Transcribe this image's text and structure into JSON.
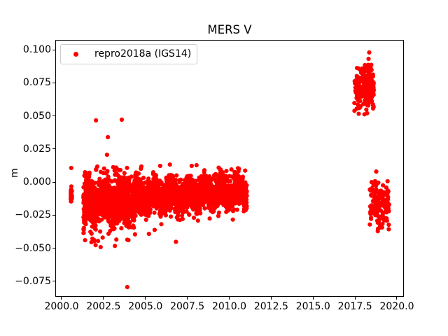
{
  "title": "MERS V",
  "chart_data": {
    "type": "scatter",
    "title": "MERS V",
    "xlabel": "",
    "ylabel": "m",
    "grid": false,
    "xlim": [
      1999.666,
      2020.376
    ],
    "ylim": [
      -0.08623,
      0.10689
    ],
    "xticks": {
      "values": [
        2000.0,
        2002.5,
        2005.0,
        2007.5,
        2010.0,
        2012.5,
        2015.0,
        2017.5,
        2020.0
      ],
      "labels": [
        "2000.0",
        "2002.5",
        "2005.0",
        "2007.5",
        "2010.0",
        "2012.5",
        "2015.0",
        "2017.5",
        "2020.0"
      ]
    },
    "yticks": {
      "values": [
        0.1,
        0.075,
        0.05,
        0.025,
        0.0,
        -0.025,
        -0.05,
        -0.075
      ],
      "labels": [
        "0.100",
        "0.075",
        "0.050",
        "0.025",
        "0.000",
        "−0.025",
        "−0.050",
        "−0.075"
      ]
    },
    "legend": {
      "position": "upper left",
      "entries": [
        {
          "label": "repro2018a (IGS14)",
          "color": "#ff0000",
          "marker": "point"
        }
      ]
    },
    "marker": {
      "shape": "circle",
      "color": "#ff0000",
      "radius_px": 3.1
    },
    "seed": 7,
    "series": [
      {
        "name": "repro2018a (IGS14)",
        "color": "#ff0000",
        "clusters": [
          {
            "name": "campaign-2000",
            "x_start": 2000.545,
            "x_end": 2000.615,
            "n": 24,
            "y_mean": -0.0095,
            "y_mean_end": -0.0095,
            "y_sd": 0.004,
            "y_min": -0.0172,
            "y_max": -0.0015,
            "x_pow": 1.0,
            "annual_amp": 0.0
          },
          {
            "name": "band-2001-2004",
            "x_start": 2001.3,
            "x_end": 2004.5,
            "n": 1150,
            "y_mean": -0.0162,
            "y_mean_end": -0.0122,
            "y_sd": 0.009,
            "y_min": -0.0452,
            "y_max": 0.011,
            "x_pow": 1.0,
            "annual_amp": 0.0028
          },
          {
            "name": "band-2004-2011",
            "x_start": 2004.5,
            "x_end": 2011.05,
            "n": 1900,
            "y_mean": -0.0108,
            "y_mean_end": -0.0072,
            "y_sd": 0.0063,
            "y_min": -0.0328,
            "y_max": 0.0112,
            "x_pow": 1.0,
            "annual_amp": 0.0032
          },
          {
            "name": "cluster-2017-2018-up",
            "x_start": 2017.42,
            "x_end": 2018.62,
            "n": 270,
            "y_mean": 0.0698,
            "y_mean_end": 0.0726,
            "y_sd": 0.0079,
            "y_min": 0.0503,
            "y_max": 0.0902,
            "x_pow": 0.62,
            "annual_amp": 0.0
          },
          {
            "name": "cluster-2018-2019-low",
            "x_start": 2018.38,
            "x_end": 2019.55,
            "n": 155,
            "y_mean": -0.0148,
            "y_mean_end": -0.0188,
            "y_sd": 0.0085,
            "y_min": -0.0365,
            "y_max": 0.0018,
            "x_pow": 1.15,
            "annual_amp": 0.0
          }
        ],
        "outlier_points": [
          [
            2000.575,
            0.0106
          ],
          [
            2002.05,
            0.0466
          ],
          [
            2003.59,
            0.0471
          ],
          [
            2002.76,
            0.0339
          ],
          [
            2002.71,
            0.0206
          ],
          [
            2002.13,
            0.0117
          ],
          [
            2003.08,
            0.0112
          ],
          [
            2003.25,
            0.0109
          ],
          [
            2004.76,
            0.0117
          ],
          [
            2005.88,
            0.0122
          ],
          [
            2006.46,
            0.0132
          ],
          [
            2007.76,
            0.0122
          ],
          [
            2008.05,
            0.0127
          ],
          [
            2010.13,
            0.0095
          ],
          [
            2001.72,
            -0.0376
          ],
          [
            2001.78,
            -0.0455
          ],
          [
            2001.84,
            -0.0428
          ],
          [
            2001.95,
            -0.0447
          ],
          [
            2002.03,
            -0.0477
          ],
          [
            2002.17,
            -0.0445
          ],
          [
            2002.33,
            -0.0492
          ],
          [
            2002.45,
            -0.042
          ],
          [
            2003.18,
            -0.0483
          ],
          [
            2003.92,
            -0.0794
          ],
          [
            2005.21,
            -0.0392
          ],
          [
            2005.55,
            -0.0362
          ],
          [
            2006.82,
            -0.0452
          ],
          [
            2017.47,
            0.0538
          ],
          [
            2018.35,
            0.0979
          ],
          [
            2018.31,
            0.0931
          ],
          [
            2018.77,
            0.0079
          ],
          [
            2018.86,
            -0.0372
          ]
        ]
      }
    ]
  }
}
